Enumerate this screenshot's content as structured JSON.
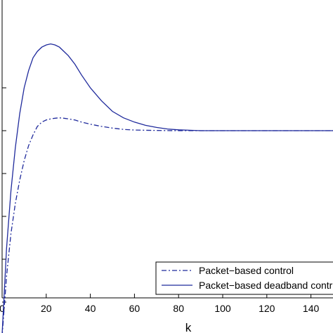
{
  "chart_data": {
    "type": "line",
    "title": "",
    "xlabel": "k",
    "ylabel": "",
    "xlim": [
      0,
      150
    ],
    "ylim": [
      0,
      1.4
    ],
    "xticks": [
      0,
      20,
      40,
      60,
      80,
      100,
      120,
      140
    ],
    "xtick_labels": [
      "0",
      "20",
      "40",
      "60",
      "80",
      "100",
      "120",
      "140"
    ],
    "yticks": [
      0.2,
      0.4,
      0.6,
      0.8,
      1.0,
      1.2
    ],
    "grid": false,
    "legend_position": "bottom-right",
    "series": [
      {
        "name": "Packet−based control",
        "style": "dash-dot",
        "color": "#1f2a9c",
        "x": [
          0,
          2,
          4,
          6,
          8,
          10,
          12,
          14,
          16,
          18,
          20,
          22,
          24,
          26,
          28,
          30,
          33,
          36,
          40,
          45,
          50,
          55,
          60,
          70,
          80,
          90,
          100,
          110,
          120,
          130,
          140,
          150
        ],
        "y": [
          0.04,
          0.32,
          0.52,
          0.66,
          0.77,
          0.86,
          0.93,
          0.98,
          1.02,
          1.04,
          1.05,
          1.055,
          1.058,
          1.06,
          1.058,
          1.055,
          1.05,
          1.04,
          1.03,
          1.02,
          1.012,
          1.006,
          1.003,
          1.001,
          1.0,
          1.0,
          1.0,
          1.0,
          1.0,
          1.0,
          1.0,
          1.0
        ]
      },
      {
        "name": "Packet−based deadband control",
        "style": "solid",
        "color": "#1f2a9c",
        "x": [
          0,
          2,
          4,
          6,
          8,
          10,
          12,
          14,
          16,
          18,
          20,
          22,
          24,
          26,
          28,
          30,
          33,
          36,
          40,
          45,
          50,
          55,
          60,
          65,
          70,
          75,
          80,
          85,
          90,
          100,
          110,
          120,
          130,
          140,
          150
        ],
        "y": [
          0.05,
          0.45,
          0.72,
          0.92,
          1.08,
          1.2,
          1.28,
          1.34,
          1.37,
          1.39,
          1.4,
          1.405,
          1.4,
          1.39,
          1.37,
          1.35,
          1.31,
          1.26,
          1.2,
          1.14,
          1.09,
          1.06,
          1.04,
          1.025,
          1.015,
          1.008,
          1.004,
          1.002,
          1.0,
          1.0,
          1.0,
          1.0,
          1.0,
          1.0,
          1.0
        ]
      }
    ]
  }
}
